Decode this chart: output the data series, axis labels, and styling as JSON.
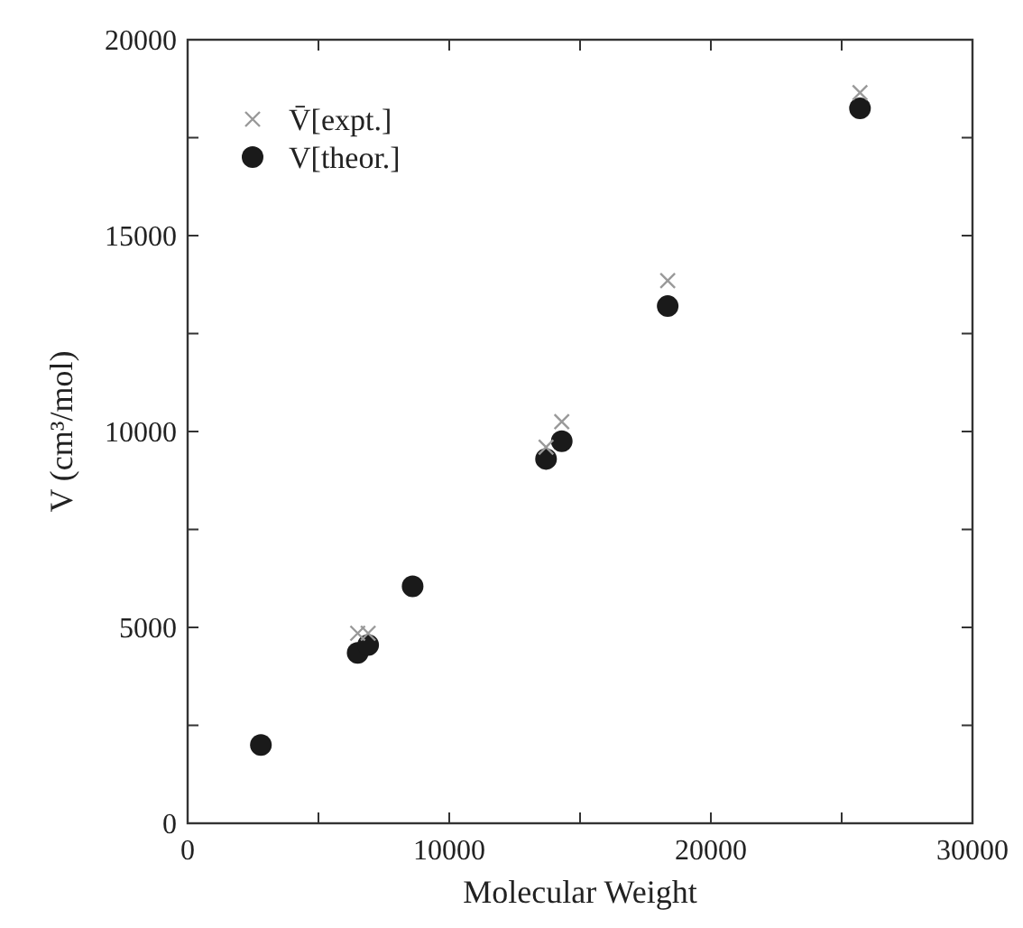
{
  "chart_data": {
    "type": "scatter",
    "xlabel": "Molecular Weight",
    "ylabel": "V (cm³/mol)",
    "xlim": [
      0,
      30000
    ],
    "ylim": [
      0,
      20000
    ],
    "xticks": [
      0,
      {
        "value": 5000,
        "label": null
      },
      10000,
      {
        "value": 15000,
        "label": null
      },
      20000,
      {
        "value": 25000,
        "label": null
      },
      30000
    ],
    "yticks": [
      0,
      {
        "value": 2500,
        "label": null
      },
      5000,
      {
        "value": 7500,
        "label": null
      },
      10000,
      {
        "value": 12500,
        "label": null
      },
      15000,
      {
        "value": 17500,
        "label": null
      },
      20000
    ],
    "x": [
      2800,
      6500,
      6900,
      8600,
      13700,
      14300,
      18350,
      25700
    ],
    "legend": "top left",
    "grid": false,
    "series": [
      {
        "name": "V̄[expt.]",
        "color": "#999999",
        "marker": "cross",
        "values": [
          null,
          4850,
          4850,
          null,
          9600,
          10250,
          13850,
          18650
        ]
      },
      {
        "name": "V[theor.]",
        "color": "#1a1a1a",
        "marker": "circle",
        "values": [
          2000,
          4350,
          4550,
          6050,
          9300,
          9750,
          13200,
          18250
        ]
      }
    ]
  }
}
